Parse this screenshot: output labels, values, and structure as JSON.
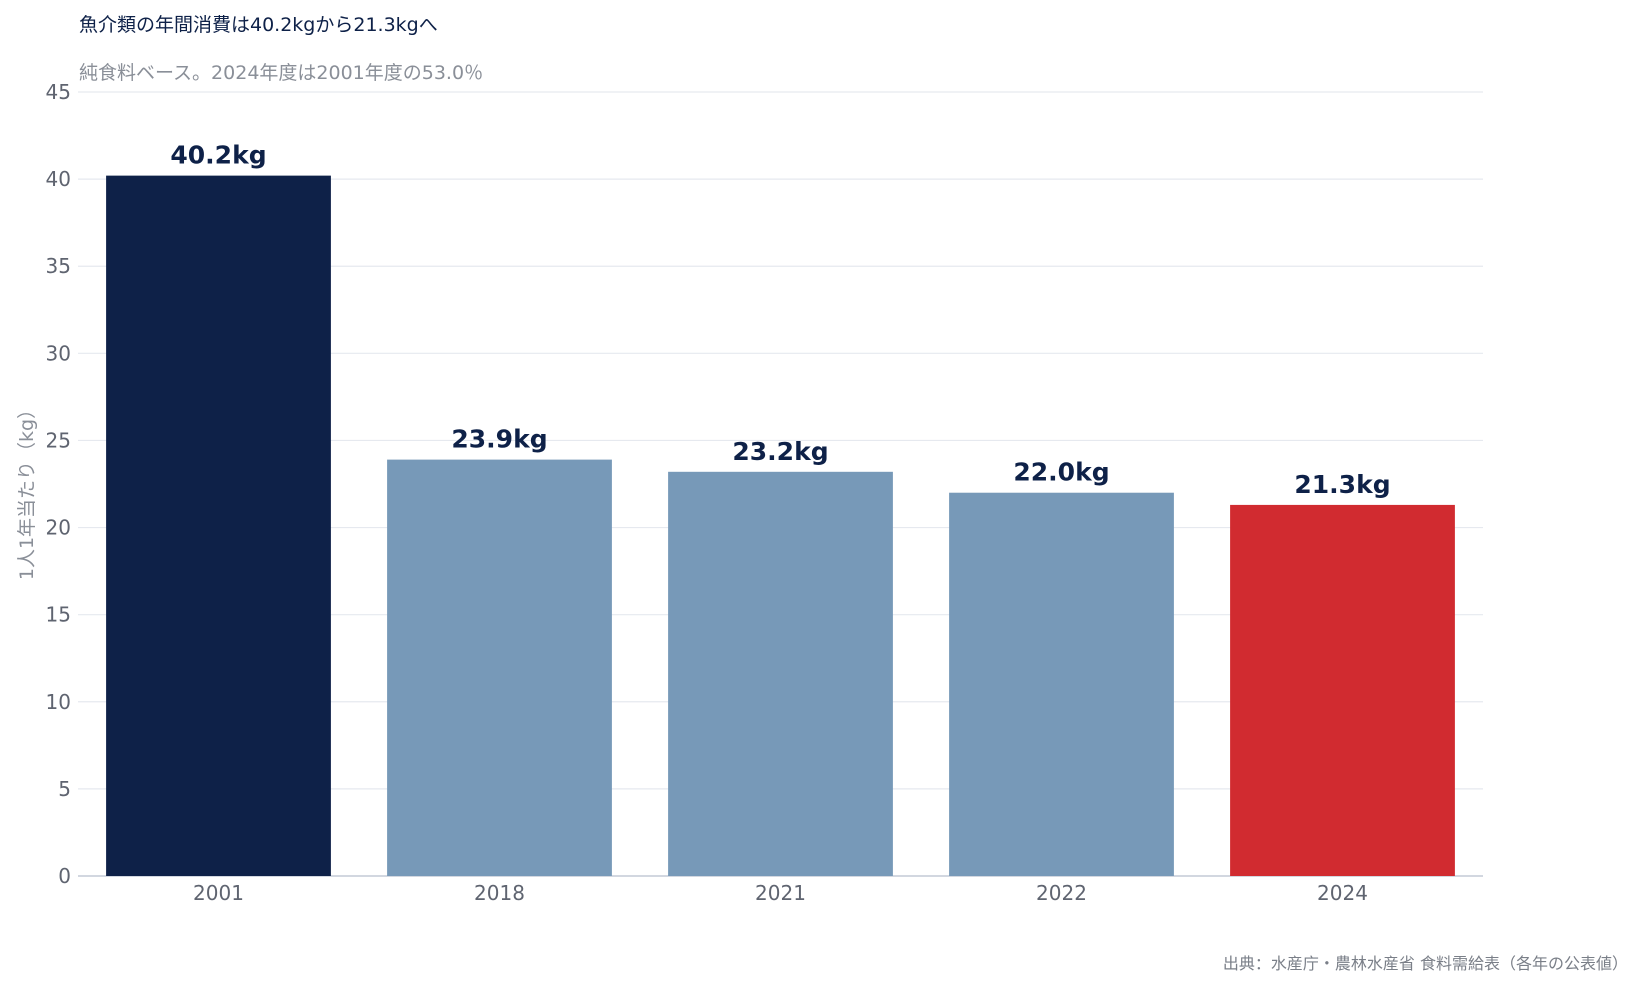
{
  "chart_data": {
    "type": "bar",
    "title": "魚介類の年間消費は40.2kgから21.3kgへ",
    "subtitle": "純食料ベース。2024年度は2001年度の53.0％",
    "ylabel": "1人1年当たり（kg）",
    "xlabel": "",
    "ylim": [
      0,
      45
    ],
    "yticks": [
      0,
      5,
      10,
      15,
      20,
      25,
      30,
      35,
      40,
      45
    ],
    "grid": true,
    "categories": [
      "2001",
      "2018",
      "2021",
      "2022",
      "2024"
    ],
    "values": [
      40.2,
      23.9,
      23.2,
      22.0,
      21.3
    ],
    "data_labels": [
      "40.2kg",
      "23.9kg",
      "23.2kg",
      "22.0kg",
      "21.3kg"
    ],
    "colors": [
      "#0e2148",
      "#7799b8",
      "#7799b8",
      "#7799b8",
      "#d12b30"
    ],
    "source": "出典：水産庁・農林水産省 食料需給表（各年の公表値）"
  }
}
